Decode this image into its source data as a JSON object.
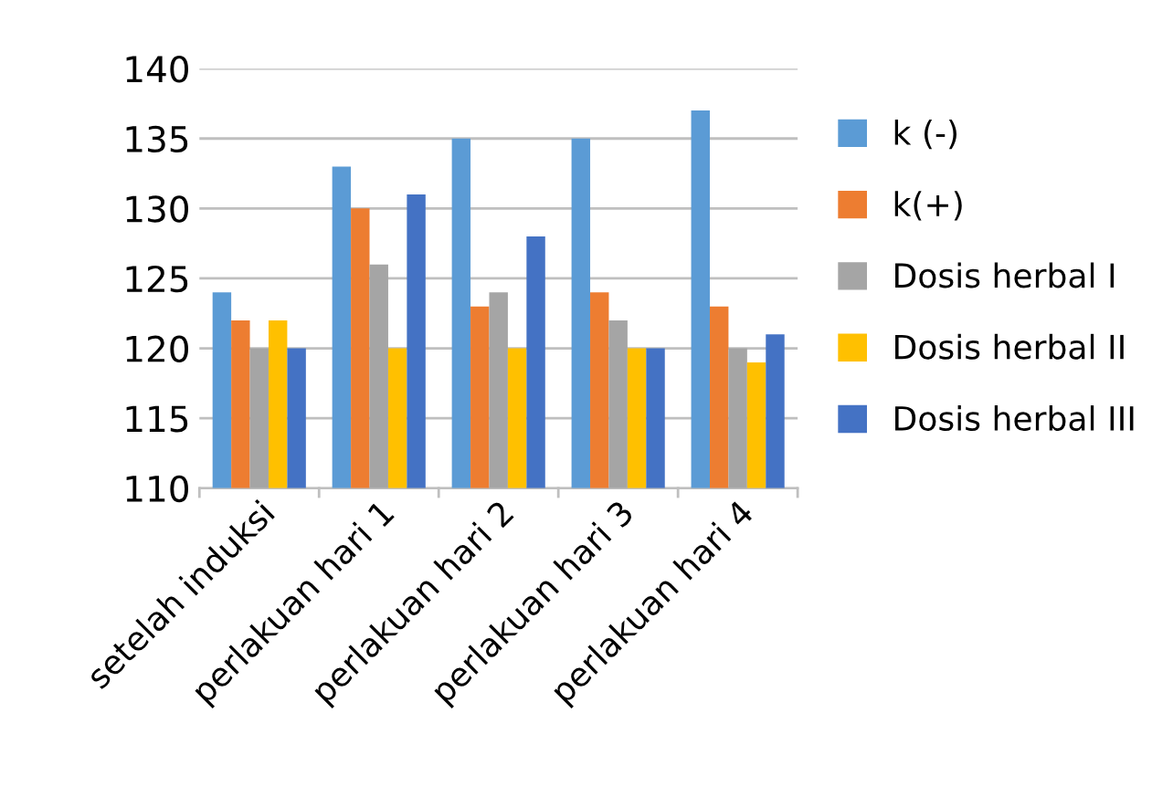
{
  "chart_data": {
    "type": "bar",
    "categories": [
      "setelah induksi",
      "perlakuan hari 1",
      "perlakuan hari 2",
      "perlakuan hari 3",
      "perlakuan hari 4"
    ],
    "series": [
      {
        "name": "k (-)",
        "color": "#5b9bd5",
        "values": [
          124,
          133,
          135,
          135,
          137
        ]
      },
      {
        "name": "k(+)",
        "color": "#ed7d31",
        "values": [
          122,
          130,
          123,
          124,
          123
        ]
      },
      {
        "name": "Dosis herbal I",
        "color": "#a5a5a5",
        "values": [
          120,
          126,
          124,
          122,
          120
        ]
      },
      {
        "name": "Dosis herbal II",
        "color": "#ffc000",
        "values": [
          122,
          120,
          120,
          120,
          119
        ]
      },
      {
        "name": "Dosis herbal III",
        "color": "#4472c4",
        "values": [
          120,
          131,
          128,
          120,
          121
        ]
      }
    ],
    "ylim": [
      110,
      140
    ],
    "yticks": [
      110,
      115,
      120,
      125,
      130,
      135,
      140
    ],
    "grid": "y",
    "legend": "right"
  }
}
